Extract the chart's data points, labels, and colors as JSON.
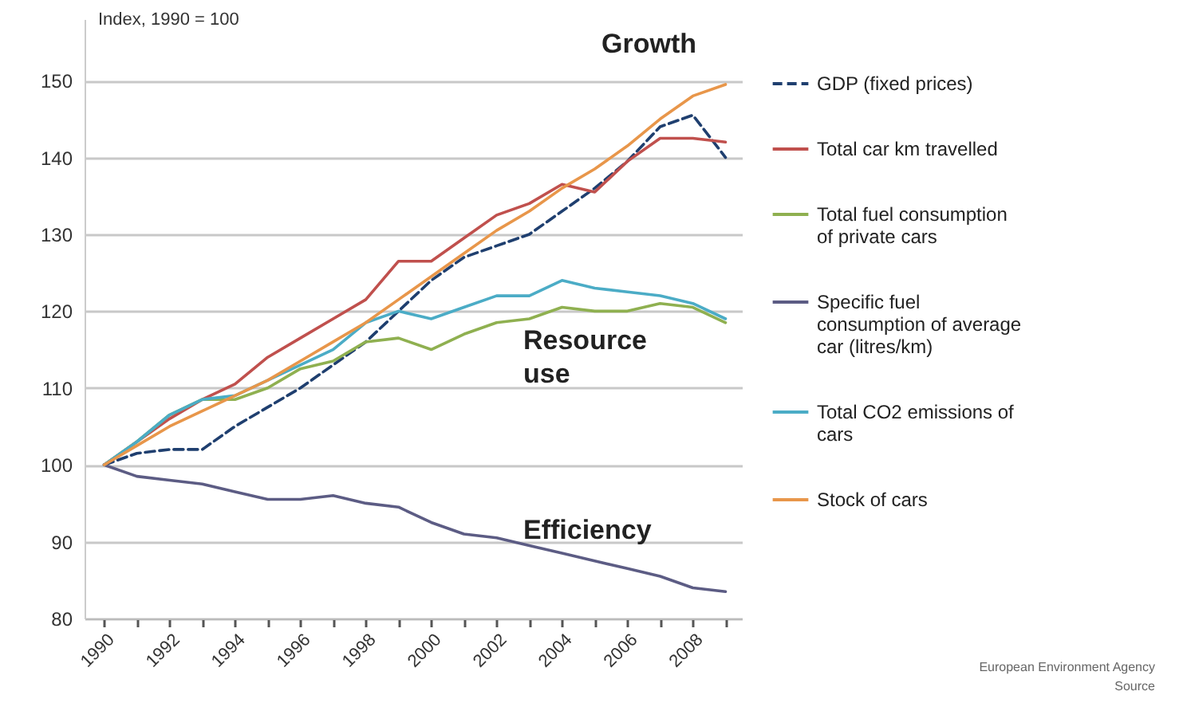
{
  "chart_data": {
    "type": "line",
    "ylabel": "Index, 1990 = 100",
    "x": [
      1990,
      1991,
      1992,
      1993,
      1994,
      1995,
      1996,
      1997,
      1998,
      1999,
      2000,
      2001,
      2002,
      2003,
      2004,
      2005,
      2006,
      2007,
      2008,
      2009
    ],
    "series": [
      {
        "name": "GDP (fixed prices)",
        "color": "#1f3f6f",
        "line_style": "dashed",
        "values": [
          100,
          101.5,
          102,
          102,
          105,
          107.5,
          110,
          113,
          116,
          120,
          124,
          127,
          128.5,
          130,
          133,
          136,
          139.5,
          144,
          145.5,
          140
        ]
      },
      {
        "name": "Total car km travelled",
        "color": "#c0504d",
        "values": [
          100,
          103,
          106,
          108.5,
          110.5,
          114,
          116.5,
          119,
          121.5,
          126.5,
          126.5,
          129.5,
          132.5,
          134,
          136.5,
          135.5,
          139.5,
          142.5,
          142.5,
          142
        ]
      },
      {
        "name": "Total fuel consumption of private cars",
        "color": "#8fb050",
        "values": [
          100,
          103,
          106.5,
          108.5,
          108.5,
          110,
          112.5,
          113.5,
          116,
          116.5,
          115,
          117,
          118.5,
          119,
          120.5,
          120,
          120,
          121,
          120.5,
          118.5
        ]
      },
      {
        "name": "Specific fuel consumption of average car (litres/km)",
        "color": "#5c5c84",
        "values": [
          100,
          98.5,
          98,
          97.5,
          96.5,
          95.5,
          95.5,
          96,
          95,
          94.5,
          92.5,
          91,
          90.5,
          89.5,
          88.5,
          87.5,
          86.5,
          85.5,
          84,
          83.5
        ]
      },
      {
        "name": "Total CO2 emissions of cars",
        "color": "#4bacc6",
        "values": [
          100,
          103,
          106.5,
          108.5,
          109,
          111,
          113,
          115,
          118.5,
          120,
          119,
          120.5,
          122,
          122,
          124,
          123,
          122.5,
          122,
          121,
          119
        ]
      },
      {
        "name": "Stock of cars",
        "color": "#e8964a",
        "values": [
          100,
          102.5,
          105,
          107,
          109,
          111,
          113.5,
          116,
          118.5,
          121.5,
          124.5,
          127.5,
          130.5,
          133,
          136,
          138.5,
          141.5,
          145,
          148,
          149.5
        ]
      }
    ],
    "xlim": [
      1989.4,
      2009.5
    ],
    "xticks": [
      1990,
      {
        "value": 1991,
        "label": null
      },
      1992,
      {
        "value": 1993,
        "label": null
      },
      1994,
      {
        "value": 1995,
        "label": null
      },
      1996,
      {
        "value": 1997,
        "label": null
      },
      1998,
      {
        "value": 1999,
        "label": null
      },
      2000,
      {
        "value": 2001,
        "label": null
      },
      2002,
      {
        "value": 2003,
        "label": null
      },
      2004,
      {
        "value": 2005,
        "label": null
      },
      2006,
      {
        "value": 2007,
        "label": null
      },
      2008,
      {
        "value": 2009,
        "label": null
      }
    ],
    "ylim": [
      80,
      158
    ],
    "yticks": [
      80,
      90,
      100,
      110,
      120,
      130,
      140,
      150
    ],
    "grid": "y",
    "legend": "right",
    "annotations": [
      "Growth",
      "Resource use",
      "Efficiency",
      "European Environment Agency",
      "Source"
    ]
  }
}
